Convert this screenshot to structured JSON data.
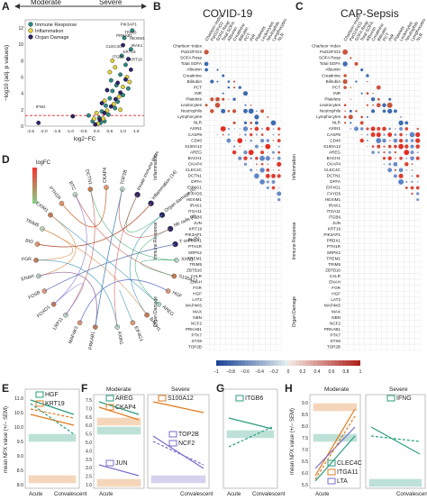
{
  "panels": {
    "A": {
      "letter": "A",
      "moderate": "Moderate",
      "severe": "Severe",
      "xlabel": "log2−FC",
      "ylabel": "−log10 (adj. p values)",
      "legend": [
        {
          "label": "Immune Response",
          "color": "#2a8b87"
        },
        {
          "label": "Inflammation",
          "color": "#e3d23b"
        },
        {
          "label": "Organ Damage",
          "color": "#2b2468"
        }
      ],
      "xticks": [
        "-2.5",
        "-2.0",
        "-1.5",
        "-1.0",
        "-0.5",
        "0.0",
        "0.5",
        "1.0",
        "1.5"
      ],
      "yticks": [
        "0",
        "2",
        "4",
        "6",
        "8",
        "10",
        "12"
      ],
      "labels": [
        {
          "t": "IFNG"
        },
        {
          "t": "CLEC4C"
        },
        {
          "t": "PIK3AP1"
        },
        {
          "t": "TRIM5"
        },
        {
          "t": "PRKAB1"
        },
        {
          "t": "HEXIM1"
        },
        {
          "t": "IRAK1"
        },
        {
          "t": "KRT19"
        },
        {
          "t": "ITGB6"
        },
        {
          "t": "KRT19"
        }
      ]
    },
    "B": {
      "letter": "B",
      "title": "COVID-19"
    },
    "C": {
      "letter": "C",
      "title": "CAP-Sepsis"
    },
    "D": {
      "letter": "D",
      "legend_title": "logFC",
      "ring": [
        "PRKAB1",
        "MAP4K5",
        "LRP11",
        "FOXO1",
        "FOSB",
        "ENAH",
        "FGR",
        "BID",
        "TRIM5",
        "HEXIM1",
        "PTH1R",
        "BTC",
        "DCTN1",
        "CKAP4",
        "TOP2B",
        "Innate immune response (13)",
        "Inflammation (14)",
        "Organ damage (6)",
        "NK cells (4)",
        "T cells (5)",
        "XXN1",
        "S100A12",
        "HGF",
        "AREG",
        "BACH1",
        "EIF4G1",
        "AXIN1"
      ]
    },
    "rows": [
      "Charlson−index",
      "PaO2/FiO2",
      "SOFA Resp",
      "Total SOFA",
      "Albumin",
      "Creatinine",
      "Bilirubin",
      "PCT",
      "INR",
      "Platelets",
      "Leukocytes",
      "Neutrophils",
      "Lymphocytes",
      "NLR",
      "AXIN1",
      "CASP8",
      "CD40",
      "S100A12",
      "AREG",
      "BACH1",
      "CKAP4",
      "CLEC4C",
      "DCTN1",
      "DFFA",
      "EIF4G1",
      "FXYD5",
      "HEXIM1",
      "IRAK1",
      "ITGA11",
      "ITGB6",
      "JUN",
      "KRT19",
      "PIK3AP1",
      "PRDX1",
      "PTH1R",
      "SRPK2",
      "TREM1",
      "TRIM5",
      "ZBTB16",
      "CALR",
      "ENAH",
      "FGR",
      "HGF",
      "LAT2",
      "MAP4K5",
      "MAX",
      "NBN",
      "NCF2",
      "PRKAB1",
      "PTK7",
      "STX8",
      "TOP2B"
    ],
    "groups": [
      "Inflammation",
      "Immune Response",
      "Organ Damage"
    ],
    "colorbar": {
      "ticks": [
        "−1",
        "−0.8",
        "−0.6",
        "−0.4",
        "−0.2",
        "0",
        "0.2",
        "0.4",
        "0.6",
        "0.8",
        "1"
      ]
    },
    "E": {
      "letter": "E",
      "ylabel": "mean NPX value (+/− SEM)",
      "xcats": [
        "Acute",
        "Convalescent"
      ],
      "legend": [
        {
          "label": "HGF",
          "color": "#2a9e7e"
        },
        {
          "label": "KRT19",
          "color": "#e07b20"
        }
      ],
      "yticks": [
        "8.0",
        "8.5",
        "9.0",
        "9.5",
        "10.0",
        "10.5",
        "11.0"
      ]
    },
    "F": {
      "letter": "F",
      "moderate": "Moderate",
      "severe": "Severe",
      "xcats": [
        "Acute",
        "Convalescent"
      ],
      "legend": [
        {
          "label": "AREG",
          "color": "#2a9e7e"
        },
        {
          "label": "CKAP4",
          "color": "#e07b20"
        },
        {
          "label": "S100A12",
          "color": "#e07b20"
        },
        {
          "label": "TOP2B",
          "color": "#7b6ec8"
        },
        {
          "label": "NCF2",
          "color": "#7b6ec8"
        },
        {
          "label": "JUN",
          "color": "#7b6ec8"
        }
      ],
      "yticks": [
        "1.0",
        "2.5",
        "3.0",
        "3.5",
        "4.0",
        "5.0",
        "5.5",
        "6.0",
        "6.5",
        "7.0",
        "7.5"
      ]
    },
    "G": {
      "letter": "G",
      "xcats": [
        "Acute",
        "Convalescent"
      ],
      "legend": [
        {
          "label": "ITGB6",
          "color": "#2a9e7e"
        }
      ]
    },
    "H": {
      "letter": "H",
      "moderate": "Moderate",
      "severe": "Severe",
      "xcats": [
        "Acute",
        "Convalescent"
      ],
      "ylabel": "mean NPX value (+/− SEM)",
      "legend": [
        {
          "label": "IFNG",
          "color": "#2a9e7e"
        },
        {
          "label": "CLEC4C",
          "color": "#2a9e7e"
        },
        {
          "label": "ITGA11",
          "color": "#e07b20"
        },
        {
          "label": "LTA",
          "color": "#7b6ec8"
        }
      ],
      "yticks": [
        "5.5",
        "6.0",
        "6.5",
        "7.0",
        "7.5",
        "8.0",
        "8.5",
        "9.0"
      ]
    }
  },
  "chart_data": [
    {
      "type": "scatter",
      "panel": "A",
      "xlabel": "log2−FC",
      "ylabel": "−log10 (adj. p values)",
      "xlim": [
        -2.7,
        1.8
      ],
      "ylim": [
        0,
        13
      ],
      "series": [
        {
          "name": "Immune Response",
          "points": [
            [
              0.1,
              1.0
            ],
            [
              0.2,
              1.8
            ],
            [
              0.35,
              2.5
            ],
            [
              0.5,
              3.4
            ],
            [
              0.6,
              4.3
            ],
            [
              0.75,
              5.0
            ],
            [
              0.9,
              6.3
            ],
            [
              1.1,
              7.5
            ],
            [
              0.3,
              0.6
            ],
            [
              0.45,
              1.4
            ],
            [
              0.7,
              2.2
            ],
            [
              0.8,
              3.0
            ],
            [
              1.0,
              3.8
            ],
            [
              1.2,
              4.6
            ],
            [
              0.55,
              5.6
            ],
            [
              0.95,
              8.6
            ],
            [
              1.3,
              9.4
            ],
            [
              0.15,
              0.4
            ],
            [
              -0.15,
              0.6
            ],
            [
              -0.3,
              1.3
            ],
            [
              1.05,
              10.8
            ],
            [
              1.35,
              11.7
            ]
          ]
        },
        {
          "name": "Inflammation",
          "points": [
            [
              0.05,
              0.3
            ],
            [
              0.25,
              0.9
            ],
            [
              0.4,
              1.9
            ],
            [
              0.65,
              2.7
            ],
            [
              0.85,
              3.6
            ],
            [
              1.0,
              4.8
            ],
            [
              1.15,
              6.0
            ],
            [
              0.5,
              6.6
            ],
            [
              0.3,
              3.1
            ],
            [
              0.7,
              7.2
            ],
            [
              -0.1,
              0.9
            ],
            [
              0.0,
              1.6
            ],
            [
              0.9,
              2.0
            ],
            [
              1.25,
              5.4
            ],
            [
              0.6,
              8.0
            ]
          ]
        },
        {
          "name": "Organ Damage",
          "points": [
            [
              0.12,
              0.8
            ],
            [
              0.3,
              1.6
            ],
            [
              0.55,
              2.4
            ],
            [
              0.72,
              3.3
            ],
            [
              0.9,
              4.1
            ],
            [
              1.1,
              5.7
            ],
            [
              1.3,
              6.9
            ],
            [
              0.4,
              4.4
            ],
            [
              0.8,
              5.3
            ],
            [
              -0.05,
              0.2
            ],
            [
              1.0,
              9.9
            ],
            [
              1.2,
              8.2
            ],
            [
              -2.2,
              0.4
            ],
            [
              -0.9,
              1.2
            ],
            [
              0.2,
              2.8
            ]
          ]
        }
      ]
    },
    {
      "type": "heatmap",
      "panel": "B",
      "title": "COVID-19"
    },
    {
      "type": "heatmap",
      "panel": "C",
      "title": "CAP-Sepsis"
    },
    {
      "type": "line",
      "panel": "E",
      "ylabel": "mean NPX value (+/− SEM)",
      "x": [
        "Acute",
        "Convalescent"
      ],
      "ylim": [
        7.6,
        11.2
      ],
      "series": [
        {
          "name": "HGF",
          "moderate": [
            10.6,
            9.3
          ],
          "severe": [
            10.6,
            10.2
          ]
        },
        {
          "name": "KRT19",
          "moderate": [
            10.3,
            9.1
          ],
          "severe": [
            9.8,
            8.9
          ]
        }
      ]
    },
    {
      "type": "line",
      "panel": "F",
      "x": [
        "Acute",
        "Convalescent"
      ],
      "series": [
        {
          "name": "AREG",
          "moderate": [
            7.6,
            6.9
          ],
          "severe": [
            7.5,
            6.5
          ]
        },
        {
          "name": "CKAP4",
          "moderate": [
            7.0,
            6.4
          ],
          "severe": [
            7.3,
            6.1
          ]
        },
        {
          "name": "JUN",
          "moderate": [
            3.1,
            2.4
          ],
          "severe": [
            3.3,
            2.6
          ]
        },
        {
          "name": "S100A12",
          "moderate": [
            6.8,
            5.4
          ],
          "severe": [
            7.4,
            6.3
          ]
        },
        {
          "name": "TOP2B",
          "moderate": [
            4.5,
            1.9
          ],
          "severe": [
            4.6,
            2.2
          ]
        },
        {
          "name": "NCF2",
          "moderate": [
            4.3,
            2.3
          ],
          "severe": [
            4.7,
            2.6
          ]
        }
      ]
    },
    {
      "type": "line",
      "panel": "G",
      "x": [
        "Acute",
        "Convalescent"
      ],
      "series": [
        {
          "name": "ITGB6",
          "moderate": [
            3.0,
            2.5
          ],
          "severe": [
            2.4,
            2.8
          ]
        }
      ]
    },
    {
      "type": "line",
      "panel": "H",
      "x": [
        "Acute",
        "Convalescent"
      ],
      "ylim": [
        5.4,
        9.2
      ],
      "series": [
        {
          "name": "CLEC4C",
          "moderate": [
            5.7,
            7.3
          ],
          "severe": [
            5.6,
            7.6
          ]
        },
        {
          "name": "ITGA11",
          "moderate": [
            6.0,
            8.6
          ],
          "severe": [
            6.3,
            8.8
          ]
        },
        {
          "name": "LTA",
          "moderate": [
            5.9,
            7.7
          ],
          "severe": [
            8.6,
            7.3
          ]
        },
        {
          "name": "IFNG",
          "moderate": [
            7.3,
            6.2
          ],
          "severe": [
            7.1,
            7.6
          ]
        }
      ]
    }
  ]
}
